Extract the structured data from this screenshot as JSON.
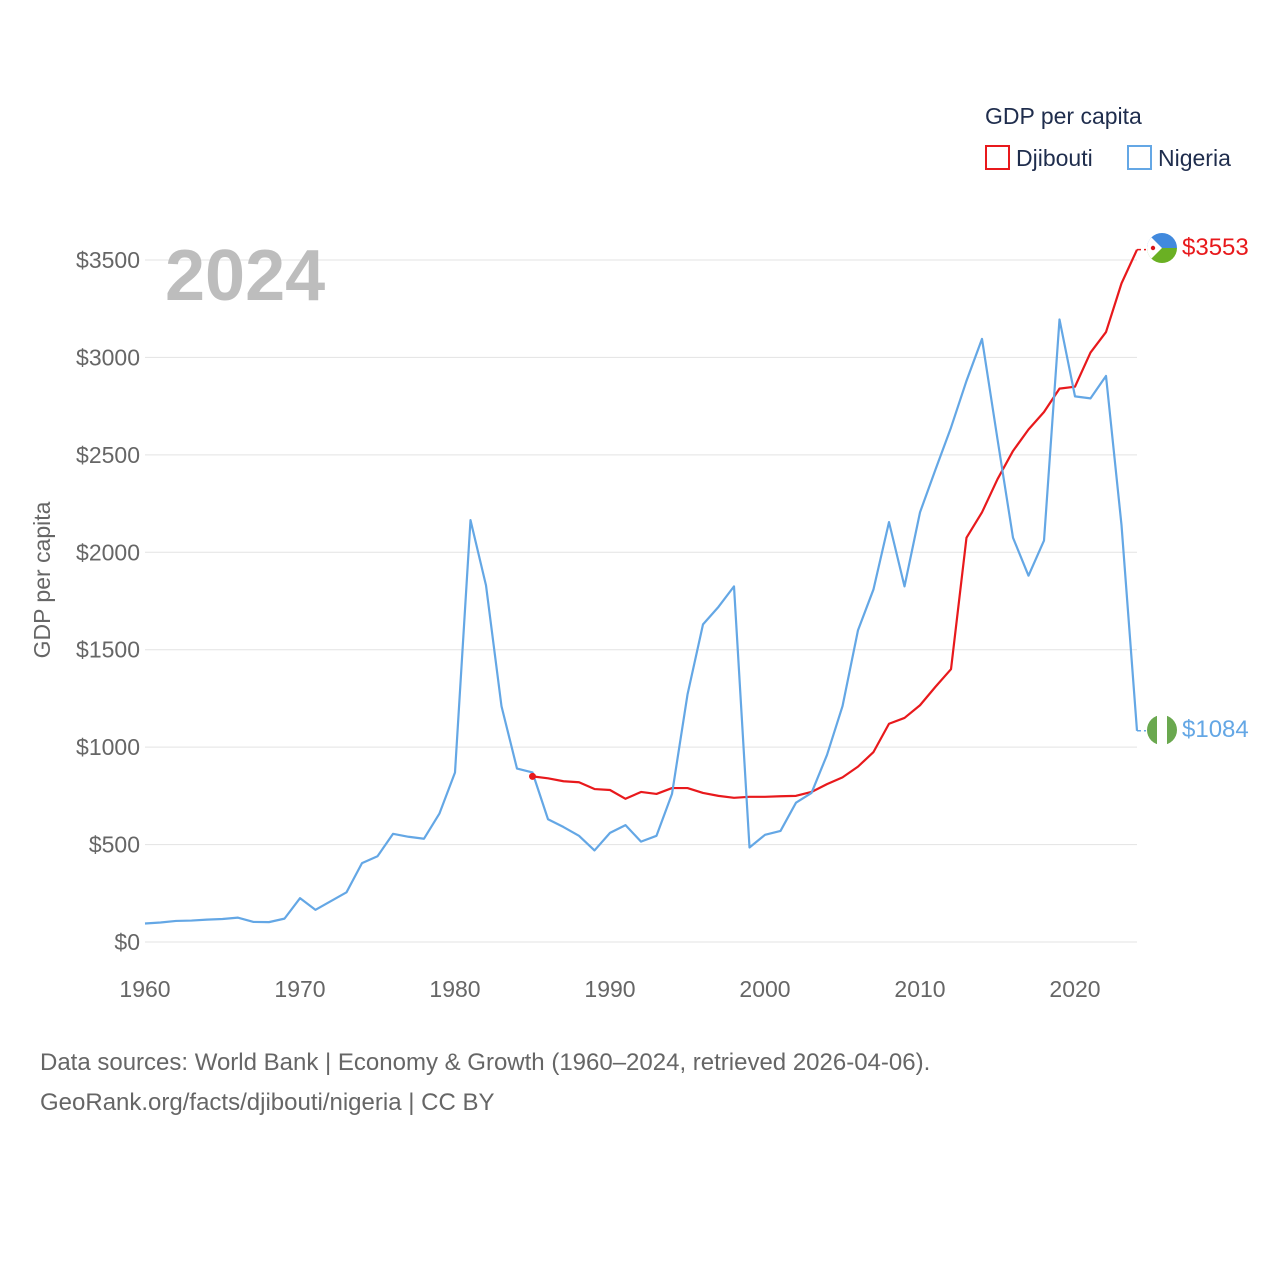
{
  "chart_data": {
    "type": "line",
    "year_label": "2024",
    "ylabel": "GDP per capita",
    "xlim": [
      1960,
      2024
    ],
    "ylim": [
      0,
      3500
    ],
    "y_ticks": [
      0,
      500,
      1000,
      1500,
      2000,
      2500,
      3000,
      3500
    ],
    "y_tick_labels": [
      "$0",
      "$500",
      "$1000",
      "$1500",
      "$2000",
      "$2500",
      "$3000",
      "$3500"
    ],
    "x_ticks": [
      1960,
      1970,
      1980,
      1990,
      2000,
      2010,
      2020
    ],
    "x_tick_labels": [
      "1960",
      "1970",
      "1980",
      "1990",
      "2000",
      "2010",
      "2020"
    ],
    "grid": true,
    "legend": {
      "title": "GDP per capita",
      "position": "top-right"
    },
    "series": [
      {
        "name": "Djibouti",
        "color": "#e8191c",
        "end_label": "$3553",
        "x": [
          1985,
          1986,
          1987,
          1988,
          1989,
          1990,
          1991,
          1992,
          1993,
          1994,
          1995,
          1996,
          1997,
          1998,
          1999,
          2000,
          2001,
          2002,
          2003,
          2004,
          2005,
          2006,
          2007,
          2008,
          2009,
          2010,
          2011,
          2012,
          2013,
          2014,
          2015,
          2016,
          2017,
          2018,
          2019,
          2020,
          2021,
          2022,
          2023,
          2024
        ],
        "values": [
          850,
          840,
          825,
          820,
          785,
          780,
          735,
          770,
          760,
          790,
          790,
          765,
          750,
          740,
          745,
          745,
          748,
          750,
          770,
          810,
          845,
          900,
          975,
          1120,
          1150,
          1215,
          1310,
          1400,
          2075,
          2205,
          2375,
          2520,
          2630,
          2720,
          2840,
          2850,
          3025,
          3130,
          3380,
          3553
        ]
      },
      {
        "name": "Nigeria",
        "color": "#64a7e5",
        "end_label": "$1084",
        "x": [
          1960,
          1961,
          1962,
          1963,
          1964,
          1965,
          1966,
          1967,
          1968,
          1969,
          1970,
          1971,
          1972,
          1973,
          1974,
          1975,
          1976,
          1977,
          1978,
          1979,
          1980,
          1981,
          1982,
          1983,
          1984,
          1985,
          1986,
          1987,
          1988,
          1989,
          1990,
          1991,
          1992,
          1993,
          1994,
          1995,
          1996,
          1997,
          1998,
          1999,
          2000,
          2001,
          2002,
          2003,
          2004,
          2005,
          2006,
          2007,
          2008,
          2009,
          2010,
          2011,
          2012,
          2013,
          2014,
          2015,
          2016,
          2017,
          2018,
          2019,
          2020,
          2021,
          2022,
          2023,
          2024
        ],
        "values": [
          95,
          100,
          108,
          110,
          115,
          118,
          125,
          103,
          102,
          120,
          225,
          165,
          210,
          255,
          405,
          440,
          555,
          540,
          530,
          660,
          870,
          2165,
          1830,
          1210,
          890,
          870,
          630,
          590,
          545,
          470,
          560,
          600,
          515,
          545,
          760,
          1270,
          1630,
          1720,
          1825,
          485,
          550,
          570,
          715,
          765,
          960,
          1210,
          1600,
          1810,
          2155,
          1825,
          2205,
          2425,
          2640,
          2880,
          3095,
          2580,
          2075,
          1880,
          2060,
          3195,
          2800,
          2790,
          2905,
          2140,
          1084
        ]
      }
    ]
  },
  "source": {
    "line1": "Data sources: World Bank | Economy & Growth (1960–2024, retrieved 2026-04-06).",
    "line2": "GeoRank.org/facts/djibouti/nigeria | CC BY"
  }
}
